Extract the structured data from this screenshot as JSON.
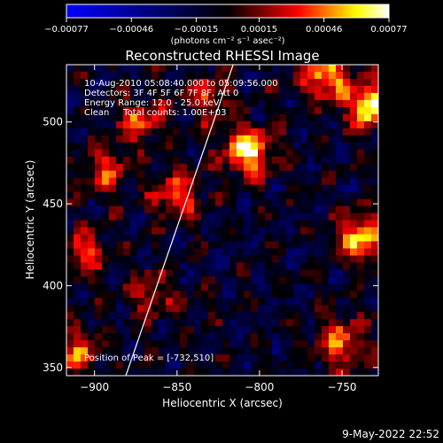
{
  "chart_data": {
    "type": "heatmap",
    "title": "Reconstructed RHESSI Image",
    "xlabel": "Heliocentric X (arcsec)",
    "ylabel": "Heliocentric Y (arcsec)",
    "xlim": [
      -917,
      -728
    ],
    "ylim": [
      345,
      535
    ],
    "x_ticks": [
      -900,
      -850,
      -800,
      -750
    ],
    "x_tick_labels": [
      "−900",
      "−850",
      "−800",
      "−750"
    ],
    "y_ticks": [
      350,
      400,
      450,
      500
    ],
    "y_tick_labels": [
      "350",
      "400",
      "450",
      "500"
    ],
    "colorbar": {
      "ticks": [
        -0.00077,
        -0.00046,
        -0.00015,
        0.00015,
        0.00046,
        0.00077
      ],
      "tick_labels": [
        "−0.00077",
        "−0.00046",
        "−0.00015",
        "0.00015",
        "0.00046",
        "0.00077"
      ],
      "unit_label": "(photons cm⁻² s⁻¹ asec⁻²)",
      "range": [
        -0.00077,
        0.00077
      ]
    },
    "annotations": [
      "10-Aug-2010 05:08:40.000 to 05:09:56.000",
      "Detectors: 3F 4F 5F 6F 7F 8F, Att 0",
      "Energy Range: 12.0 - 25.0 keV",
      "Clean     Total counts: 1.00E+03",
      "Position of Peak = [-732,510]"
    ],
    "peak": {
      "x": -732,
      "y": 510
    },
    "limb_line": {
      "x": [
        -881,
        -816
      ],
      "y": [
        345,
        535
      ]
    },
    "bright_regions": [
      {
        "x": -807,
        "y": 482,
        "intensity": 0.95
      },
      {
        "x": -732,
        "y": 510,
        "intensity": 1.0
      },
      {
        "x": -760,
        "y": 528,
        "intensity": 0.8
      },
      {
        "x": -738,
        "y": 430,
        "intensity": 0.85
      },
      {
        "x": -850,
        "y": 455,
        "intensity": 0.6
      },
      {
        "x": -872,
        "y": 500,
        "intensity": 0.55
      },
      {
        "x": -905,
        "y": 420,
        "intensity": 0.5
      },
      {
        "x": -893,
        "y": 470,
        "intensity": 0.55
      },
      {
        "x": -865,
        "y": 395,
        "intensity": 0.45
      },
      {
        "x": -750,
        "y": 365,
        "intensity": 0.65
      },
      {
        "x": -910,
        "y": 360,
        "intensity": 0.55
      },
      {
        "x": -830,
        "y": 515,
        "intensity": 0.5
      }
    ],
    "grid": false,
    "colormap": [
      "#0000ff",
      "#000000",
      "#ff0000",
      "#ffff00",
      "#ffffff"
    ]
  },
  "footer": {
    "timestamp": "9-May-2022 22:52"
  }
}
